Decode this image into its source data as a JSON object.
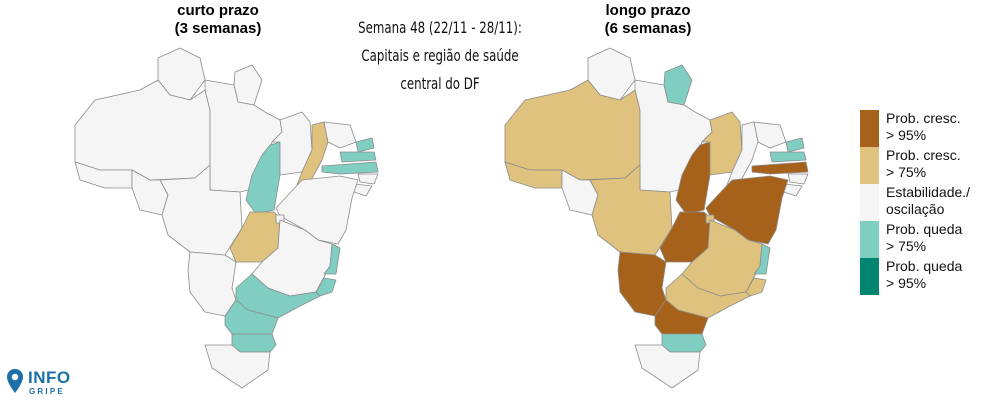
{
  "left_map": {
    "title_line1": "curto prazo",
    "title_line2": "(3 semanas)"
  },
  "right_map": {
    "title_line1": "longo prazo",
    "title_line2": "(6 semanas)"
  },
  "center_title": {
    "line1": "Semana 48 (22/11 - 28/11):",
    "line2": "Capitais e região de saúde",
    "line3": "central do DF"
  },
  "legend": [
    {
      "line1": "Prob. cresc.",
      "line2": "> 95%",
      "color": "#a6611a"
    },
    {
      "line1": "Prob. cresc.",
      "line2": "> 75%",
      "color": "#dfc27d"
    },
    {
      "line1": "Estabilidade./",
      "line2": "oscilação",
      "color": "#f5f5f5"
    },
    {
      "line1": "Prob. queda",
      "line2": "> 75%",
      "color": "#80cdc1"
    },
    {
      "line1": "Prob. queda",
      "line2": "> 95%",
      "color": "#018571"
    }
  ],
  "logo": {
    "line1": "INFO",
    "line2": "GRIPE",
    "color": "#1d6fa8"
  },
  "category_colors": {
    "cresc95": "#a6611a",
    "cresc75": "#dfc27d",
    "estavel": "#f5f5f5",
    "queda75": "#80cdc1",
    "queda95": "#018571"
  },
  "left_states": {
    "RR": "estavel",
    "AP": "estavel",
    "AM": "estavel",
    "PA": "estavel",
    "AC": "estavel",
    "RO": "estavel",
    "MT": "estavel",
    "TO": "queda75",
    "MA": "estavel",
    "PI": "cresc75",
    "CE": "estavel",
    "RN": "queda75",
    "PB": "queda75",
    "PE": "queda75",
    "AL": "estavel",
    "SE": "estavel",
    "BA": "estavel",
    "GO": "cresc75",
    "DF": "estavel",
    "MG": "estavel",
    "ES": "queda75",
    "RJ": "queda75",
    "SP": "queda75",
    "MS": "estavel",
    "PR": "queda75",
    "SC": "queda75",
    "RS": "estavel"
  },
  "right_states": {
    "RR": "estavel",
    "AP": "queda75",
    "AM": "cresc75",
    "PA": "estavel",
    "AC": "cresc75",
    "RO": "estavel",
    "MT": "cresc75",
    "TO": "cresc95",
    "MA": "cresc75",
    "PI": "estavel",
    "CE": "estavel",
    "RN": "queda75",
    "PB": "queda75",
    "PE": "cresc95",
    "AL": "estavel",
    "SE": "estavel",
    "BA": "cresc95",
    "GO": "cresc95",
    "DF": "cresc75",
    "MG": "cresc75",
    "ES": "queda75",
    "RJ": "cresc75",
    "SP": "cresc75",
    "MS": "cresc95",
    "PR": "cresc95",
    "SC": "queda75",
    "RS": "estavel"
  }
}
